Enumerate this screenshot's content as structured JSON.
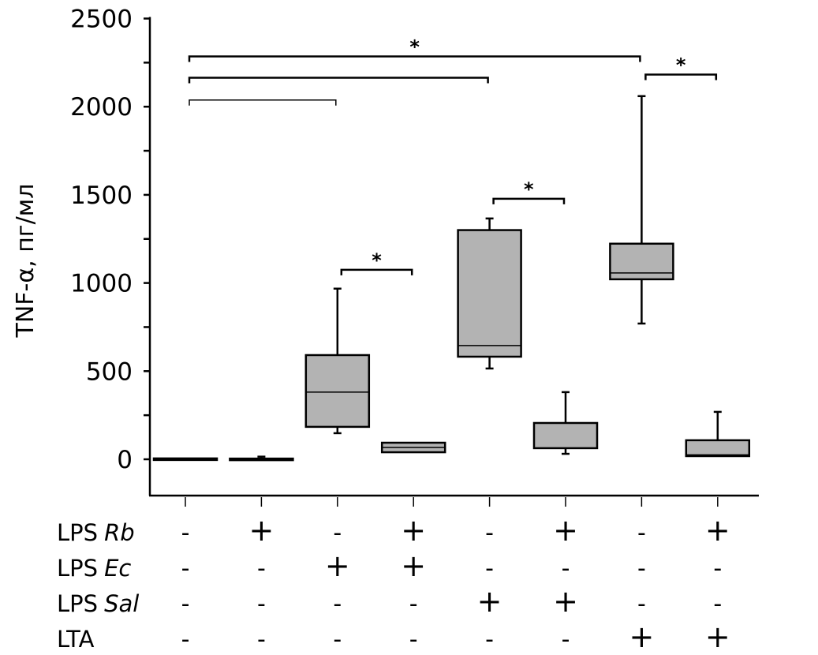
{
  "chart_data": {
    "type": "box",
    "ylabel": "TNF-α, пг/мл",
    "ylim": [
      -200,
      2500
    ],
    "yticks": [
      0,
      500,
      1000,
      1500,
      2000,
      2500
    ],
    "yminor_step": 250,
    "grid": false,
    "box_color": "#b3b3b3",
    "groups": [
      {
        "min": 0,
        "q1": 0,
        "median": 2,
        "q3": 5,
        "max": 5
      },
      {
        "min": 0,
        "q1": 0,
        "median": 2,
        "q3": 4,
        "max": 15
      },
      {
        "min": 148,
        "q1": 184,
        "median": 381,
        "q3": 591,
        "max": 968
      },
      {
        "min": 40,
        "q1": 40,
        "median": 67,
        "q3": 94,
        "max": 94
      },
      {
        "min": 515,
        "q1": 582,
        "median": 645,
        "q3": 1300,
        "max": 1366
      },
      {
        "min": 31,
        "q1": 63,
        "median": 63,
        "q3": 206,
        "max": 381
      },
      {
        "min": 770,
        "q1": 1021,
        "median": 1057,
        "q3": 1223,
        "max": 2060
      },
      {
        "min": 18,
        "q1": 18,
        "median": 25,
        "q3": 108,
        "max": 269
      }
    ],
    "brackets": [
      {
        "from": 1,
        "to": 7,
        "y": 2285,
        "label": "*"
      },
      {
        "from": 1,
        "to": 5,
        "y": 2164,
        "label": ""
      },
      {
        "from": 1,
        "to": 3,
        "y": 2038,
        "label": ""
      },
      {
        "from": 7,
        "to": 8,
        "y": 2182,
        "label": "*"
      },
      {
        "from": 5,
        "to": 6,
        "y": 1478,
        "label": "*"
      },
      {
        "from": 3,
        "to": 4,
        "y": 1075,
        "label": "*"
      }
    ],
    "conditions": [
      {
        "name": "LPS",
        "italic": "Rb",
        "values": [
          "-",
          "+",
          "-",
          "+",
          "-",
          "+",
          "-",
          "+"
        ]
      },
      {
        "name": "LPS",
        "italic": "Ec",
        "values": [
          "-",
          "-",
          "+",
          "+",
          "-",
          "-",
          "-",
          "-"
        ]
      },
      {
        "name": "LPS",
        "italic": "Sal",
        "values": [
          "-",
          "-",
          "-",
          "-",
          "+",
          "+",
          "-",
          "-"
        ]
      },
      {
        "name": "LTA",
        "italic": "",
        "values": [
          "-",
          "-",
          "-",
          "-",
          "-",
          "-",
          "+",
          "+"
        ]
      }
    ]
  }
}
